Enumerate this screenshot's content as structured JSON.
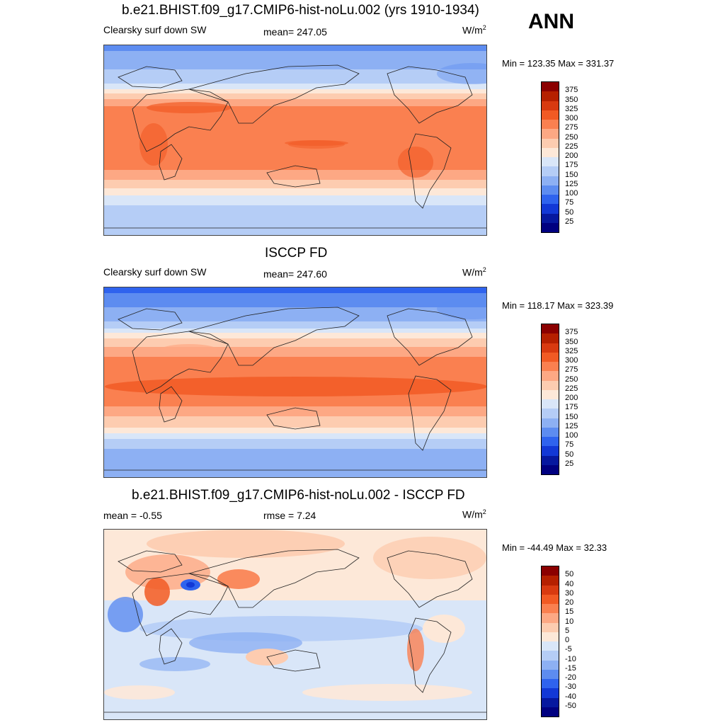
{
  "season": "ANN",
  "panels": [
    {
      "title": "b.e21.BHIST.f09_g17.CMIP6-hist-noLu.002 (yrs 1910-1934)",
      "left_label": "Clearsky surf down SW",
      "center_label": "mean= 247.05",
      "units_base": "W/m",
      "units_exp": "2",
      "minmax": "Min = 123.35 Max = 331.37",
      "colorbar_ticks": [
        "375",
        "350",
        "325",
        "300",
        "275",
        "250",
        "225",
        "200",
        "175",
        "150",
        "125",
        "100",
        "75",
        "50",
        "25"
      ]
    },
    {
      "title": "ISCCP FD",
      "left_label": "Clearsky surf down SW",
      "center_label": "mean= 247.60",
      "units_base": "W/m",
      "units_exp": "2",
      "minmax": "Min = 118.17 Max = 323.39",
      "colorbar_ticks": [
        "375",
        "350",
        "325",
        "300",
        "275",
        "250",
        "225",
        "200",
        "175",
        "150",
        "125",
        "100",
        "75",
        "50",
        "25"
      ]
    },
    {
      "title": "b.e21.BHIST.f09_g17.CMIP6-hist-noLu.002 - ISCCP FD",
      "left_label": "mean =  -0.55",
      "center_label": "rmse =   7.24",
      "units_base": "W/m",
      "units_exp": "2",
      "minmax": "Min = -44.49 Max =  32.33",
      "colorbar_ticks": [
        "50",
        "40",
        "30",
        "20",
        "15",
        "10",
        "5",
        "0",
        "-5",
        "-10",
        "-15",
        "-20",
        "-30",
        "-40",
        "-50"
      ]
    }
  ],
  "colors": {
    "sequential": [
      "#8b0000",
      "#b52000",
      "#d83a10",
      "#f15a24",
      "#fa8050",
      "#fda884",
      "#fdccb0",
      "#fde8d8",
      "#d9e6f8",
      "#b5cdf6",
      "#8db0f3",
      "#5d8cf0",
      "#2f63ee",
      "#1238d6",
      "#06189f",
      "#000080"
    ],
    "diverging": [
      "#8b0000",
      "#b52000",
      "#d83a10",
      "#f15a24",
      "#fa8050",
      "#fda884",
      "#fdccb0",
      "#fde8d8",
      "#d9e6f8",
      "#b5cdf6",
      "#8db0f3",
      "#5d8cf0",
      "#2f63ee",
      "#1238d6",
      "#06189f",
      "#000080"
    ],
    "coastline": "#222222"
  }
}
